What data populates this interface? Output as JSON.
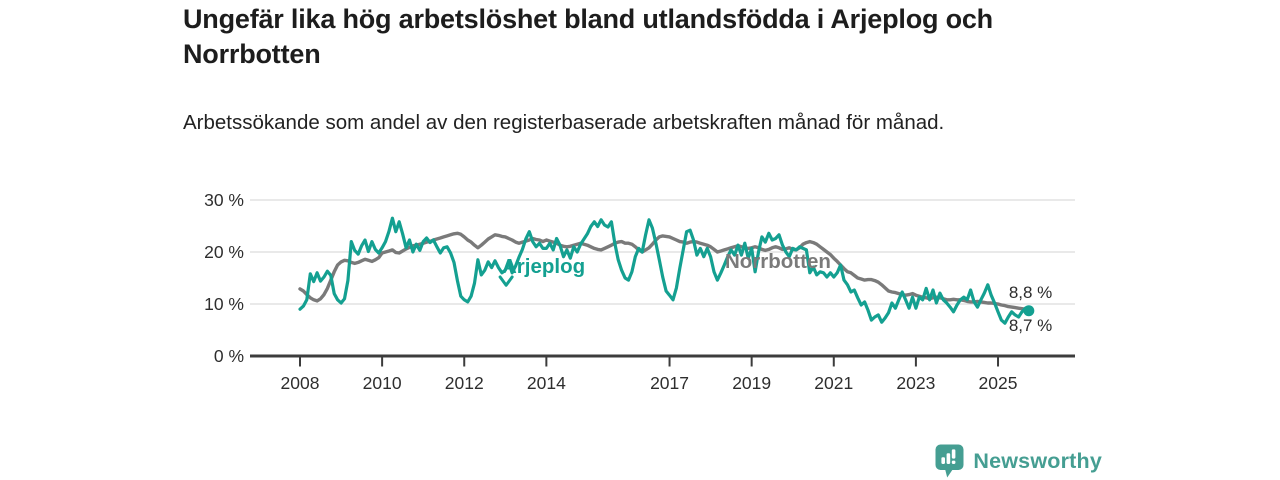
{
  "header": {
    "title": "Ungefär lika hög arbetslöshet bland utlandsfödda i Arjeplog och Norrbotten",
    "subtitle": "Arbetssökande som andel av den registerbaserade arbetskraften månad för månad."
  },
  "chart_data": {
    "type": "line",
    "title": "Ungefär lika hög arbetslöshet bland utlandsfödda i Arjeplog och Norrbotten",
    "x_unit": "month",
    "x_start_year": 2008,
    "ylim": [
      0,
      30
    ],
    "xlim_years": [
      2006.8,
      2026.9
    ],
    "grid": true,
    "colors": {
      "grid": "#e2e2e2",
      "axis": "#3c3c3c",
      "tick_text": "#2e2e2e",
      "end_label_text": "#2b2b2b"
    },
    "y_ticks": [
      {
        "value": 0,
        "label": "0 %"
      },
      {
        "value": 10,
        "label": "10 %"
      },
      {
        "value": 20,
        "label": "20 %"
      },
      {
        "value": 30,
        "label": "30 %"
      }
    ],
    "x_ticks": [
      {
        "year": 2008,
        "label": "2008"
      },
      {
        "year": 2010,
        "label": "2010"
      },
      {
        "year": 2012,
        "label": "2012"
      },
      {
        "year": 2014,
        "label": "2014"
      },
      {
        "year": 2017,
        "label": "2017"
      },
      {
        "year": 2019,
        "label": "2019"
      },
      {
        "year": 2021,
        "label": "2021"
      },
      {
        "year": 2023,
        "label": "2023"
      },
      {
        "year": 2025,
        "label": "2025"
      }
    ],
    "series": [
      {
        "name": "Norrbotten",
        "color": "#7a7a7a",
        "stroke_width": 3.4,
        "end_dot": false,
        "values": [
          12.9,
          12.5,
          11.8,
          11.2,
          10.8,
          10.6,
          11.0,
          11.8,
          13.0,
          14.6,
          16.2,
          17.5,
          18.1,
          18.4,
          18.3,
          18.0,
          17.8,
          18.0,
          18.3,
          18.6,
          18.4,
          18.2,
          18.5,
          18.9,
          19.8,
          20.0,
          20.2,
          20.4,
          19.9,
          19.8,
          20.2,
          20.6,
          20.9,
          21.2,
          21.3,
          21.5,
          21.7,
          21.9,
          22.0,
          22.3,
          22.5,
          22.7,
          22.9,
          23.1,
          23.3,
          23.5,
          23.6,
          23.4,
          22.9,
          22.3,
          21.9,
          21.3,
          20.8,
          21.3,
          21.9,
          22.5,
          22.9,
          23.3,
          23.2,
          23.0,
          22.9,
          22.6,
          22.3,
          21.9,
          21.7,
          21.9,
          22.1,
          22.3,
          22.6,
          22.4,
          22.3,
          22.0,
          22.3,
          22.1,
          21.9,
          21.7,
          21.3,
          21.1,
          21.0,
          21.1,
          21.3,
          21.5,
          21.7,
          21.5,
          21.3,
          21.0,
          20.7,
          20.5,
          20.4,
          20.7,
          21.0,
          21.3,
          21.7,
          21.9,
          22.0,
          21.7,
          21.7,
          21.5,
          21.0,
          20.4,
          20.0,
          20.4,
          20.8,
          21.5,
          22.3,
          22.9,
          23.1,
          23.0,
          22.9,
          22.6,
          22.3,
          22.0,
          21.9,
          21.7,
          21.9,
          22.0,
          21.9,
          21.7,
          21.5,
          21.3,
          21.0,
          20.5,
          20.0,
          20.2,
          20.4,
          20.6,
          20.8,
          21.0,
          21.2,
          21.0,
          20.8,
          20.7,
          20.8,
          21.0,
          20.8,
          20.5,
          20.3,
          20.5,
          20.8,
          21.0,
          20.8,
          20.5,
          20.6,
          20.8,
          20.5,
          20.4,
          20.8,
          21.5,
          21.8,
          22.0,
          21.8,
          21.5,
          21.0,
          20.5,
          20.0,
          19.5,
          18.8,
          18.2,
          17.5,
          16.8,
          16.2,
          16.0,
          15.5,
          15.0,
          14.8,
          14.6,
          14.7,
          14.7,
          14.5,
          14.2,
          13.7,
          13.1,
          12.5,
          12.3,
          12.2,
          12.0,
          11.8,
          11.7,
          11.8,
          12.0,
          11.7,
          11.5,
          11.3,
          11.2,
          11.0,
          11.2,
          11.3,
          11.2,
          11.0,
          10.8,
          10.8,
          10.9,
          10.8,
          10.8,
          10.7,
          10.5,
          10.4,
          10.4,
          10.5,
          10.4,
          10.3,
          10.2,
          10.2,
          10.1,
          10.0,
          9.8,
          9.7,
          9.5,
          9.4,
          9.3,
          9.2,
          9.1,
          9.0,
          8.8
        ]
      },
      {
        "name": "Arjeplog",
        "color": "#14a091",
        "stroke_width": 3.2,
        "end_dot": true,
        "values": [
          9.0,
          9.6,
          10.8,
          15.8,
          14.3,
          16.0,
          14.4,
          15.2,
          16.3,
          15.5,
          12.0,
          10.8,
          10.2,
          11.0,
          14.5,
          22.0,
          20.3,
          19.6,
          21.2,
          22.3,
          20.1,
          22.0,
          20.5,
          19.8,
          20.8,
          22.0,
          24.0,
          26.5,
          23.9,
          25.8,
          23.5,
          20.8,
          22.3,
          20.0,
          21.5,
          20.3,
          22.0,
          22.7,
          21.8,
          22.3,
          21.0,
          19.8,
          20.8,
          21.0,
          19.8,
          18.0,
          14.5,
          11.5,
          10.8,
          10.4,
          11.5,
          14.0,
          18.5,
          15.6,
          16.5,
          18.1,
          17.0,
          18.3,
          17.0,
          16.0,
          16.5,
          18.1,
          16.0,
          17.3,
          19.0,
          20.5,
          22.5,
          23.9,
          22.0,
          21.0,
          21.7,
          20.7,
          20.7,
          21.7,
          20.4,
          22.6,
          21.3,
          19.1,
          20.4,
          18.8,
          21.0,
          20.0,
          21.5,
          22.5,
          23.5,
          24.9,
          25.8,
          24.9,
          26.2,
          25.2,
          24.8,
          25.8,
          21.7,
          18.5,
          16.5,
          15.0,
          14.6,
          16.2,
          19.1,
          20.7,
          20.0,
          23.3,
          26.2,
          24.6,
          21.7,
          18.5,
          15.2,
          12.5,
          11.7,
          10.8,
          13.1,
          16.9,
          20.4,
          23.9,
          24.2,
          22.3,
          19.4,
          20.7,
          19.1,
          20.7,
          19.1,
          16.2,
          14.6,
          16.0,
          17.5,
          19.1,
          20.4,
          19.4,
          21.3,
          19.4,
          21.7,
          18.8,
          20.7,
          16.2,
          20.0,
          22.9,
          21.9,
          23.6,
          22.3,
          22.6,
          23.3,
          21.3,
          20.0,
          19.1,
          20.7,
          20.4,
          21.0,
          20.7,
          20.4,
          16.0,
          17.1,
          15.6,
          16.2,
          16.0,
          15.2,
          16.0,
          15.2,
          16.0,
          17.5,
          14.6,
          13.7,
          12.3,
          12.7,
          11.2,
          9.8,
          10.4,
          8.8,
          6.9,
          7.5,
          7.9,
          6.5,
          7.3,
          8.3,
          10.2,
          9.2,
          10.8,
          12.3,
          10.8,
          9.2,
          11.3,
          9.2,
          11.3,
          10.8,
          13.0,
          10.8,
          12.7,
          10.2,
          12.1,
          10.8,
          10.2,
          9.4,
          8.5,
          9.8,
          10.8,
          11.3,
          10.8,
          12.7,
          10.4,
          9.4,
          10.8,
          12.1,
          13.7,
          11.7,
          10.2,
          8.5,
          6.9,
          6.3,
          7.5,
          8.5,
          7.9,
          7.5,
          8.5,
          9.2,
          8.7
        ]
      }
    ],
    "annotations": [
      {
        "text": "Arjeplog",
        "series": "Arjeplog",
        "x_year": 2012.92,
        "y_pct": 17.3,
        "arrow": {
          "x_year": 2013.02,
          "from_pct": 15.2,
          "to_pct": 13.6
        }
      },
      {
        "text": "Norrbotten",
        "series": "Norrbotten",
        "x_year": 2018.35,
        "y_pct": 18.3
      }
    ],
    "end_labels": [
      {
        "text": "8,8 %",
        "series": "Norrbotten",
        "value": 8.8,
        "position": "above"
      },
      {
        "text": "8,7 %",
        "series": "Arjeplog",
        "value": 8.7,
        "position": "below"
      }
    ]
  },
  "footer": {
    "brand": "Newsworthy",
    "brand_color": "#459e92"
  }
}
